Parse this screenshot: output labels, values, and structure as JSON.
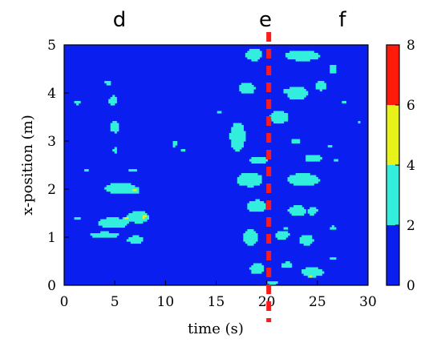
{
  "chart_data": {
    "type": "heatmap",
    "xlabel": "time (s)",
    "ylabel": "x-position (m)",
    "xlim": [
      0,
      30
    ],
    "ylim": [
      0,
      5
    ],
    "x_ticks": [
      "0",
      "5",
      "10",
      "15",
      "20",
      "25",
      "30"
    ],
    "y_ticks": [
      "0",
      "1",
      "2",
      "3",
      "4",
      "5"
    ],
    "markers": [
      {
        "label": "d",
        "x": 5.5
      },
      {
        "label": "e",
        "x": 20.1
      },
      {
        "label": "f",
        "x": 27.5
      }
    ],
    "vertical_line": {
      "x": 20.2,
      "style": "dashed",
      "color": "#ff1a1a"
    },
    "colorbar": {
      "ticks": [
        "0",
        "2",
        "4",
        "6",
        "8"
      ],
      "levels": [
        {
          "from": 0,
          "to": 2,
          "color": "#0a1ef0"
        },
        {
          "from": 2,
          "to": 4,
          "color": "#33eedd"
        },
        {
          "from": 4,
          "to": 6,
          "color": "#e6f21a"
        },
        {
          "from": 6,
          "to": 8,
          "color": "#ff1a0a"
        }
      ]
    },
    "background_level": 1,
    "blobs": [
      {
        "t": 4.8,
        "x": 1.3,
        "rt": 2.2,
        "rx": 0.15,
        "v": 3.2,
        "a": -10
      },
      {
        "t": 7.3,
        "x": 1.42,
        "rt": 1.5,
        "rx": 0.16,
        "v": 3.4,
        "a": 15
      },
      {
        "t": 4.0,
        "x": 1.05,
        "rt": 2.2,
        "rx": 0.09,
        "v": 3.0,
        "a": 15
      },
      {
        "t": 7.0,
        "x": 0.95,
        "rt": 1.2,
        "rx": 0.12,
        "v": 3.0,
        "a": -30
      },
      {
        "t": 6.2,
        "x": 1.38,
        "rt": 0.6,
        "rx": 0.06,
        "v": 4.6,
        "a": 0
      },
      {
        "t": 7.9,
        "x": 1.42,
        "rt": 0.5,
        "rx": 0.07,
        "v": 4.8,
        "a": 0
      },
      {
        "t": 5.6,
        "x": 2.02,
        "rt": 2.2,
        "rx": 0.16,
        "v": 3.3,
        "a": 10
      },
      {
        "t": 7.0,
        "x": 1.98,
        "rt": 0.45,
        "rx": 0.06,
        "v": 4.7,
        "a": 0
      },
      {
        "t": 6.8,
        "x": 2.4,
        "rt": 0.6,
        "rx": 0.05,
        "v": 3.0,
        "a": 0
      },
      {
        "t": 5.0,
        "x": 3.3,
        "rt": 0.7,
        "rx": 0.18,
        "v": 3.0,
        "a": -20
      },
      {
        "t": 4.8,
        "x": 3.85,
        "rt": 0.6,
        "rx": 0.14,
        "v": 3.0,
        "a": 0
      },
      {
        "t": 4.3,
        "x": 4.22,
        "rt": 0.5,
        "rx": 0.07,
        "v": 3.0,
        "a": 0
      },
      {
        "t": 5.0,
        "x": 2.8,
        "rt": 0.25,
        "rx": 0.12,
        "v": 2.8,
        "a": 0
      },
      {
        "t": 1.3,
        "x": 3.8,
        "rt": 0.5,
        "rx": 0.06,
        "v": 2.9,
        "a": 0
      },
      {
        "t": 1.3,
        "x": 1.4,
        "rt": 0.45,
        "rx": 0.06,
        "v": 2.9,
        "a": 0
      },
      {
        "t": 1.0,
        "x": 2.0,
        "rt": 0.3,
        "rx": 0.04,
        "v": 2.8,
        "a": 0
      },
      {
        "t": 2.2,
        "x": 2.4,
        "rt": 0.3,
        "rx": 0.05,
        "v": 2.8,
        "a": 0
      },
      {
        "t": 10.9,
        "x": 2.95,
        "rt": 0.3,
        "rx": 0.12,
        "v": 2.9,
        "a": 0
      },
      {
        "t": 11.8,
        "x": 2.8,
        "rt": 0.4,
        "rx": 0.05,
        "v": 2.8,
        "a": 0
      },
      {
        "t": 17.1,
        "x": 3.1,
        "rt": 1.0,
        "rx": 0.4,
        "v": 3.4,
        "a": -45
      },
      {
        "t": 15.3,
        "x": 3.6,
        "rt": 0.3,
        "rx": 0.06,
        "v": 2.8,
        "a": 0
      },
      {
        "t": 18.7,
        "x": 4.8,
        "rt": 1.1,
        "rx": 0.18,
        "v": 3.2,
        "a": 0
      },
      {
        "t": 23.5,
        "x": 4.78,
        "rt": 2.5,
        "rx": 0.15,
        "v": 3.2,
        "a": 15
      },
      {
        "t": 18.0,
        "x": 4.1,
        "rt": 1.2,
        "rx": 0.18,
        "v": 3.1,
        "a": 20
      },
      {
        "t": 23.0,
        "x": 4.0,
        "rt": 1.6,
        "rx": 0.2,
        "v": 3.1,
        "a": -25
      },
      {
        "t": 25.3,
        "x": 4.15,
        "rt": 0.8,
        "rx": 0.14,
        "v": 3.0,
        "a": 30
      },
      {
        "t": 26.5,
        "x": 4.5,
        "rt": 0.6,
        "rx": 0.14,
        "v": 3.0,
        "a": -30
      },
      {
        "t": 21.2,
        "x": 3.5,
        "rt": 1.3,
        "rx": 0.2,
        "v": 3.1,
        "a": 20
      },
      {
        "t": 22.8,
        "x": 3.0,
        "rt": 0.8,
        "rx": 0.06,
        "v": 2.9,
        "a": 0
      },
      {
        "t": 19.2,
        "x": 2.6,
        "rt": 1.3,
        "rx": 0.12,
        "v": 3.0,
        "a": 10
      },
      {
        "t": 24.6,
        "x": 2.65,
        "rt": 1.3,
        "rx": 0.12,
        "v": 3.0,
        "a": -10
      },
      {
        "t": 18.3,
        "x": 2.2,
        "rt": 1.8,
        "rx": 0.2,
        "v": 3.3,
        "a": -10
      },
      {
        "t": 23.6,
        "x": 2.2,
        "rt": 2.2,
        "rx": 0.18,
        "v": 3.3,
        "a": 15
      },
      {
        "t": 19.0,
        "x": 1.65,
        "rt": 1.3,
        "rx": 0.18,
        "v": 3.2,
        "a": 20
      },
      {
        "t": 23.0,
        "x": 1.55,
        "rt": 1.3,
        "rx": 0.16,
        "v": 3.1,
        "a": -20
      },
      {
        "t": 24.5,
        "x": 1.55,
        "rt": 0.7,
        "rx": 0.12,
        "v": 3.0,
        "a": 0
      },
      {
        "t": 18.4,
        "x": 1.0,
        "rt": 1.0,
        "rx": 0.22,
        "v": 3.3,
        "a": 35
      },
      {
        "t": 21.5,
        "x": 1.05,
        "rt": 1.0,
        "rx": 0.14,
        "v": 3.1,
        "a": -30
      },
      {
        "t": 23.9,
        "x": 0.95,
        "rt": 1.0,
        "rx": 0.16,
        "v": 3.1,
        "a": -30
      },
      {
        "t": 19.0,
        "x": 0.35,
        "rt": 1.0,
        "rx": 0.16,
        "v": 3.1,
        "a": 0
      },
      {
        "t": 22.0,
        "x": 0.42,
        "rt": 0.8,
        "rx": 0.1,
        "v": 3.0,
        "a": 0
      },
      {
        "t": 24.5,
        "x": 0.28,
        "rt": 1.6,
        "rx": 0.13,
        "v": 3.2,
        "a": 5
      },
      {
        "t": 24.4,
        "x": 0.2,
        "rt": 0.45,
        "rx": 0.045,
        "v": 4.7,
        "a": 0
      },
      {
        "t": 26.5,
        "x": 0.55,
        "rt": 0.6,
        "rx": 0.05,
        "v": 2.8,
        "a": 0
      },
      {
        "t": 20.5,
        "x": 0.05,
        "rt": 0.9,
        "rx": 0.06,
        "v": 2.9,
        "a": 0
      },
      {
        "t": 27.6,
        "x": 3.8,
        "rt": 0.3,
        "rx": 0.04,
        "v": 2.8,
        "a": 0
      },
      {
        "t": 26.9,
        "x": 2.6,
        "rt": 0.35,
        "rx": 0.05,
        "v": 2.8,
        "a": 0
      },
      {
        "t": 29.1,
        "x": 3.4,
        "rt": 0.3,
        "rx": 0.04,
        "v": 2.8,
        "a": 0
      },
      {
        "t": 26.5,
        "x": 1.2,
        "rt": 0.4,
        "rx": 0.06,
        "v": 2.9,
        "a": 0
      },
      {
        "t": 26.2,
        "x": 2.9,
        "rt": 0.3,
        "rx": 0.04,
        "v": 2.8,
        "a": 0
      },
      {
        "t": 21.9,
        "x": 4.05,
        "rt": 0.3,
        "rx": 0.04,
        "v": 4.5,
        "a": 0
      },
      {
        "t": 21.8,
        "x": 1.2,
        "rt": 0.2,
        "rx": 0.03,
        "v": 4.5,
        "a": 0
      }
    ]
  }
}
